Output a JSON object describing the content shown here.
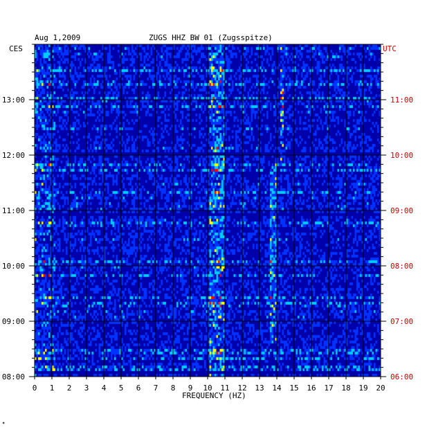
{
  "header": {
    "date": "Aug 1,2009",
    "station": "ZUGS HHZ BW 01 (Zugsspitze)",
    "left_zone": "CES",
    "right_zone": "UTC"
  },
  "chart_data": {
    "type": "heatmap",
    "title": "ZUGS HHZ BW 01 (Zugsspitze)",
    "xlabel": "FREQUENCY (HZ)",
    "xlim": [
      0,
      20
    ],
    "x_ticks": [
      0,
      1,
      2,
      3,
      4,
      5,
      6,
      7,
      8,
      9,
      10,
      11,
      12,
      13,
      14,
      15,
      16,
      17,
      18,
      19,
      20
    ],
    "left_axis": {
      "zone": "CES",
      "ticks": [
        "13:00",
        "12:00",
        "11:00",
        "10:00",
        "09:00",
        "08:00"
      ]
    },
    "right_axis": {
      "zone": "UTC",
      "ticks": [
        "11:00",
        "10:00",
        "09:00",
        "08:00",
        "07:00",
        "06:00"
      ]
    },
    "time_range_cest": [
      "08:00",
      "13:50"
    ],
    "features": [
      {
        "freq_hz": 10.5,
        "note": "persistent band"
      },
      {
        "freq_hz": 13.8,
        "note": "band before ~12:00"
      },
      {
        "freq_hz": 14.3,
        "note": "band after ~12:00"
      }
    ],
    "colormap": [
      "#0000aa",
      "#0033ff",
      "#00ccff",
      "#ffff00",
      "#ff0000"
    ],
    "grid": true
  }
}
